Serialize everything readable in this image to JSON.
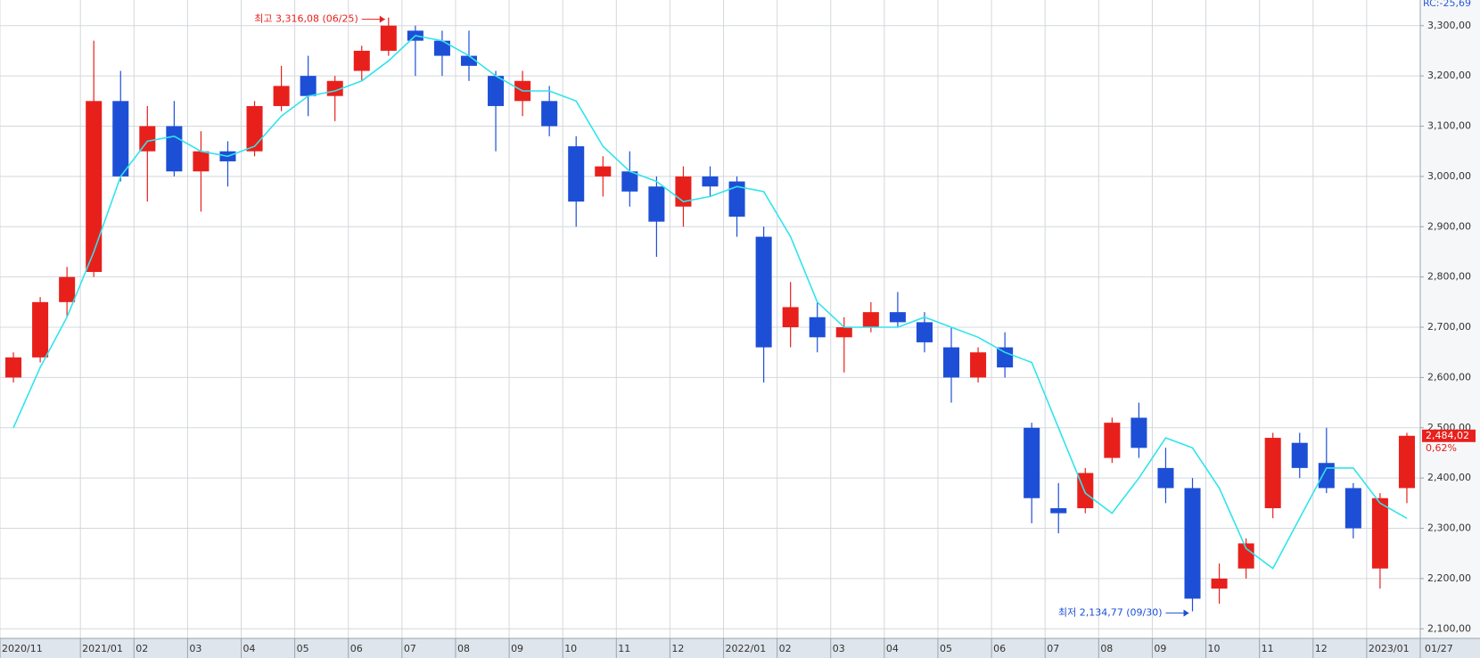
{
  "chart_data": {
    "type": "candlestick",
    "categories": [
      "2020/11",
      null,
      null,
      "2021/01",
      null,
      "02",
      null,
      "03",
      null,
      "04",
      null,
      "05",
      null,
      "06",
      null,
      "07",
      null,
      "08",
      null,
      "09",
      null,
      "10",
      null,
      "11",
      null,
      "12",
      null,
      "2022/01",
      null,
      "02",
      null,
      "03",
      null,
      "04",
      null,
      "05",
      null,
      "06",
      null,
      "07",
      null,
      "08",
      null,
      "09",
      null,
      "10",
      null,
      "11",
      null,
      "12",
      null,
      "2023/01",
      null
    ],
    "open": [
      2600,
      2640,
      2750,
      2810,
      3150,
      3050,
      3100,
      3010,
      3050,
      3050,
      3140,
      3200,
      3160,
      3210,
      3250,
      3290,
      3270,
      3240,
      3200,
      3150,
      3150,
      3060,
      3000,
      3010,
      2980,
      2940,
      3000,
      2990,
      2880,
      2700,
      2720,
      2680,
      2700,
      2730,
      2710,
      2660,
      2600,
      2660,
      2500,
      2340,
      2340,
      2440,
      2520,
      2420,
      2380,
      2180,
      2220,
      2340,
      2470,
      2430,
      2380,
      2220,
      2380
    ],
    "high": [
      2650,
      2760,
      2820,
      3270,
      3210,
      3140,
      3150,
      3090,
      3070,
      3150,
      3220,
      3240,
      3200,
      3260,
      3316.08,
      3300,
      3290,
      3290,
      3210,
      3210,
      3180,
      3080,
      3040,
      3050,
      3000,
      3020,
      3020,
      3000,
      2900,
      2790,
      2750,
      2720,
      2750,
      2770,
      2730,
      2700,
      2660,
      2690,
      2510,
      2390,
      2420,
      2520,
      2550,
      2460,
      2400,
      2230,
      2280,
      2490,
      2490,
      2500,
      2390,
      2370,
      2490
    ],
    "low": [
      2590,
      2630,
      2720,
      2800,
      2990,
      2950,
      3000,
      2930,
      2980,
      3040,
      3130,
      3120,
      3110,
      3190,
      3240,
      3200,
      3200,
      3190,
      3050,
      3120,
      3080,
      2900,
      2960,
      2940,
      2840,
      2900,
      2960,
      2880,
      2590,
      2660,
      2650,
      2610,
      2690,
      2700,
      2650,
      2550,
      2590,
      2600,
      2310,
      2290,
      2330,
      2430,
      2440,
      2350,
      2134.77,
      2150,
      2200,
      2320,
      2400,
      2370,
      2280,
      2180,
      2350
    ],
    "close": [
      2640,
      2750,
      2800,
      3150,
      3000,
      3100,
      3010,
      3050,
      3030,
      3140,
      3180,
      3160,
      3190,
      3250,
      3300,
      3270,
      3240,
      3220,
      3140,
      3190,
      3100,
      2950,
      3020,
      2970,
      2910,
      3000,
      2980,
      2920,
      2660,
      2740,
      2680,
      2700,
      2730,
      2710,
      2670,
      2600,
      2650,
      2620,
      2360,
      2330,
      2410,
      2510,
      2460,
      2380,
      2160,
      2200,
      2270,
      2480,
      2420,
      2380,
      2300,
      2360,
      2484.02
    ],
    "up_color": "#e8201c",
    "down_color": "#1d4fd6",
    "moving_average": {
      "color": "#30e4ec",
      "values": [
        2500,
        2620,
        2720,
        2850,
        3000,
        3070,
        3080,
        3050,
        3040,
        3060,
        3120,
        3160,
        3170,
        3190,
        3230,
        3280,
        3270,
        3240,
        3200,
        3170,
        3170,
        3150,
        3060,
        3010,
        2990,
        2950,
        2960,
        2980,
        2970,
        2880,
        2750,
        2700,
        2700,
        2700,
        2720,
        2700,
        2680,
        2650,
        2630,
        2500,
        2370,
        2330,
        2400,
        2480,
        2460,
        2380,
        2260,
        2220,
        2320,
        2420,
        2420,
        2350,
        2320
      ]
    },
    "ylim": [
      2081,
      3351
    ],
    "yticks": [
      {
        "value": 2100,
        "label": "2,100,00"
      },
      {
        "value": 2200,
        "label": "2,200,00"
      },
      {
        "value": 2300,
        "label": "2,300,00"
      },
      {
        "value": 2400,
        "label": "2,400,00"
      },
      {
        "value": 2500,
        "label": "2,500,00"
      },
      {
        "value": 2600,
        "label": "2,600,00"
      },
      {
        "value": 2700,
        "label": "2,700,00"
      },
      {
        "value": 2800,
        "label": "2,800,00"
      },
      {
        "value": 2900,
        "label": "2,900,00"
      },
      {
        "value": 3000,
        "label": "3,000,00"
      },
      {
        "value": 3100,
        "label": "3,100,00"
      },
      {
        "value": 3200,
        "label": "3,200,00"
      },
      {
        "value": 3300,
        "label": "3,300,00"
      }
    ],
    "grid": true,
    "high_annotation": "최고 3,316,08 (06/25)",
    "low_annotation": "최저 2,134,77 (09/30)",
    "last_price": {
      "value": 2484.02,
      "label": "2,484,02"
    },
    "last_change": "0,62%",
    "rc_label": "RC:-25,69",
    "last_date": "01/27"
  }
}
